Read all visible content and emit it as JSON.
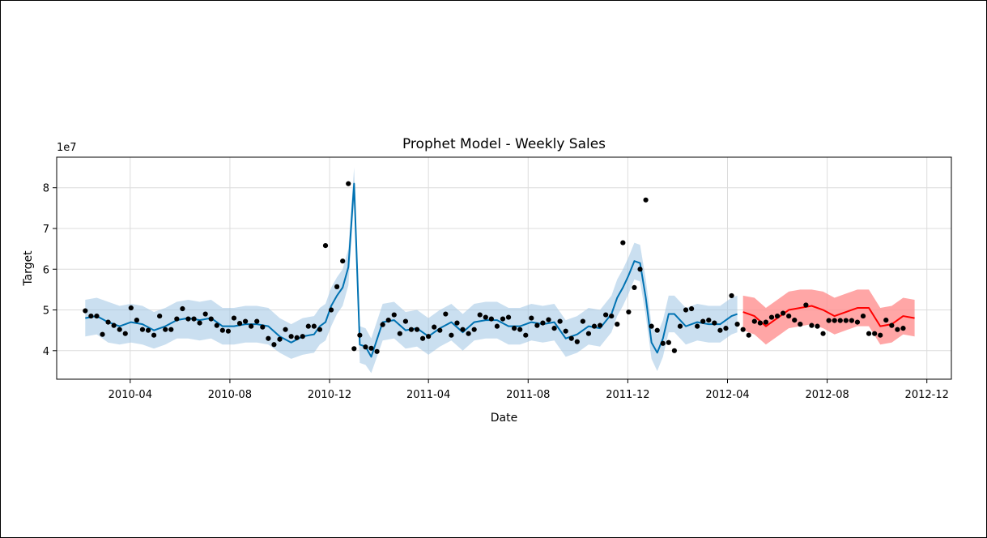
{
  "chart_data": {
    "type": "line",
    "title": "Prophet Model - Weekly Sales",
    "xlabel": "Date",
    "ylabel": "Target",
    "y_offset_label": "1e7",
    "y_scale": 10000000,
    "grid": true,
    "x_range": [
      "2010-01-01",
      "2012-12-31"
    ],
    "ylim": [
      3.3,
      8.75
    ],
    "x_ticks": [
      "2010-04",
      "2010-08",
      "2010-12",
      "2011-04",
      "2011-08",
      "2011-12",
      "2012-04",
      "2012-08",
      "2012-12"
    ],
    "y_ticks": [
      "4",
      "5",
      "6",
      "7",
      "8"
    ],
    "colors": {
      "fit_line": "#0072b2",
      "fit_band": "#9ec5e3",
      "forecast_line": "#ff0000",
      "forecast_band": "#ff9090",
      "points": "#000000"
    },
    "series": [
      {
        "role": "fitted_trend",
        "x": [
          "2010-02-05",
          "2010-02-19",
          "2010-03-05",
          "2010-03-19",
          "2010-04-02",
          "2010-04-16",
          "2010-04-30",
          "2010-05-14",
          "2010-05-28",
          "2010-06-11",
          "2010-06-25",
          "2010-07-09",
          "2010-07-23",
          "2010-08-06",
          "2010-08-20",
          "2010-09-03",
          "2010-09-17",
          "2010-10-01",
          "2010-10-15",
          "2010-10-29",
          "2010-11-12",
          "2010-11-19",
          "2010-11-26",
          "2010-12-03",
          "2010-12-10",
          "2010-12-17",
          "2010-12-24",
          "2010-12-31",
          "2011-01-07",
          "2011-01-14",
          "2011-01-21",
          "2011-02-04",
          "2011-02-18",
          "2011-03-04",
          "2011-03-18",
          "2011-04-01",
          "2011-04-15",
          "2011-04-29",
          "2011-05-13",
          "2011-05-27",
          "2011-06-10",
          "2011-06-24",
          "2011-07-08",
          "2011-07-22",
          "2011-08-05",
          "2011-08-19",
          "2011-09-02",
          "2011-09-16",
          "2011-09-30",
          "2011-10-14",
          "2011-10-28",
          "2011-11-11",
          "2011-11-18",
          "2011-11-25",
          "2011-12-02",
          "2011-12-09",
          "2011-12-16",
          "2011-12-23",
          "2011-12-30",
          "2012-01-06",
          "2012-01-13",
          "2012-01-20",
          "2012-01-27",
          "2012-02-10",
          "2012-02-24",
          "2012-03-09",
          "2012-03-23",
          "2012-04-06",
          "2012-04-13"
        ],
        "y": [
          4.8,
          4.85,
          4.7,
          4.6,
          4.7,
          4.65,
          4.5,
          4.6,
          4.75,
          4.8,
          4.75,
          4.8,
          4.6,
          4.6,
          4.65,
          4.65,
          4.6,
          4.35,
          4.2,
          4.35,
          4.4,
          4.6,
          4.7,
          5.1,
          5.35,
          5.55,
          6.05,
          8.1,
          4.15,
          4.1,
          3.85,
          4.7,
          4.75,
          4.5,
          4.55,
          4.35,
          4.55,
          4.7,
          4.45,
          4.7,
          4.75,
          4.75,
          4.6,
          4.6,
          4.7,
          4.65,
          4.7,
          4.3,
          4.4,
          4.6,
          4.55,
          4.9,
          5.3,
          5.55,
          5.85,
          6.2,
          6.15,
          5.3,
          4.2,
          3.95,
          4.3,
          4.9,
          4.9,
          4.6,
          4.7,
          4.65,
          4.65,
          4.85,
          4.9
        ],
        "lower": [
          4.35,
          4.4,
          4.2,
          4.15,
          4.2,
          4.15,
          4.05,
          4.15,
          4.3,
          4.3,
          4.25,
          4.3,
          4.15,
          4.15,
          4.2,
          4.2,
          4.15,
          3.95,
          3.8,
          3.9,
          3.95,
          4.15,
          4.25,
          4.6,
          4.9,
          5.1,
          5.6,
          7.7,
          3.7,
          3.65,
          3.45,
          4.25,
          4.3,
          4.05,
          4.1,
          3.9,
          4.1,
          4.25,
          4.0,
          4.25,
          4.3,
          4.3,
          4.15,
          4.15,
          4.25,
          4.2,
          4.25,
          3.85,
          3.95,
          4.15,
          4.1,
          4.45,
          4.85,
          5.1,
          5.4,
          5.75,
          5.7,
          4.85,
          3.8,
          3.5,
          3.85,
          4.45,
          4.45,
          4.15,
          4.25,
          4.2,
          4.2,
          4.4,
          4.45
        ],
        "upper": [
          5.25,
          5.3,
          5.2,
          5.1,
          5.15,
          5.1,
          4.95,
          5.05,
          5.2,
          5.25,
          5.2,
          5.25,
          5.05,
          5.05,
          5.1,
          5.1,
          5.05,
          4.8,
          4.65,
          4.8,
          4.85,
          5.05,
          5.15,
          5.55,
          5.8,
          6.0,
          6.5,
          8.5,
          4.6,
          4.55,
          4.3,
          5.15,
          5.2,
          4.95,
          5.0,
          4.8,
          5.0,
          5.15,
          4.9,
          5.15,
          5.2,
          5.2,
          5.05,
          5.05,
          5.15,
          5.1,
          5.15,
          4.75,
          4.85,
          5.05,
          5.0,
          5.35,
          5.75,
          6.0,
          6.3,
          6.65,
          6.6,
          5.75,
          4.65,
          4.4,
          4.75,
          5.35,
          5.35,
          5.05,
          5.15,
          5.1,
          5.1,
          5.3,
          5.35
        ]
      },
      {
        "role": "forecast",
        "x": [
          "2012-04-20",
          "2012-05-04",
          "2012-05-18",
          "2012-06-01",
          "2012-06-15",
          "2012-06-29",
          "2012-07-13",
          "2012-07-27",
          "2012-08-10",
          "2012-08-24",
          "2012-09-07",
          "2012-09-21",
          "2012-10-05",
          "2012-10-19",
          "2012-11-02",
          "2012-11-16"
        ],
        "y": [
          4.95,
          4.85,
          4.6,
          4.8,
          5.0,
          5.05,
          5.1,
          5.0,
          4.85,
          4.95,
          5.05,
          5.05,
          4.6,
          4.65,
          4.85,
          4.8
        ],
        "lower": [
          4.5,
          4.4,
          4.15,
          4.35,
          4.55,
          4.6,
          4.65,
          4.55,
          4.4,
          4.5,
          4.6,
          4.6,
          4.15,
          4.2,
          4.4,
          4.35
        ],
        "upper": [
          5.35,
          5.3,
          5.05,
          5.25,
          5.45,
          5.5,
          5.5,
          5.45,
          5.3,
          5.4,
          5.5,
          5.5,
          5.05,
          5.1,
          5.3,
          5.25
        ]
      },
      {
        "role": "observed",
        "x": [
          "2010-02-05",
          "2010-02-12",
          "2010-02-19",
          "2010-02-26",
          "2010-03-05",
          "2010-03-12",
          "2010-03-19",
          "2010-03-26",
          "2010-04-02",
          "2010-04-09",
          "2010-04-16",
          "2010-04-23",
          "2010-04-30",
          "2010-05-07",
          "2010-05-14",
          "2010-05-21",
          "2010-05-28",
          "2010-06-04",
          "2010-06-11",
          "2010-06-18",
          "2010-06-25",
          "2010-07-02",
          "2010-07-09",
          "2010-07-16",
          "2010-07-23",
          "2010-07-30",
          "2010-08-06",
          "2010-08-13",
          "2010-08-20",
          "2010-08-27",
          "2010-09-03",
          "2010-09-10",
          "2010-09-17",
          "2010-09-24",
          "2010-10-01",
          "2010-10-08",
          "2010-10-15",
          "2010-10-22",
          "2010-10-29",
          "2010-11-05",
          "2010-11-12",
          "2010-11-19",
          "2010-11-26",
          "2010-12-03",
          "2010-12-10",
          "2010-12-17",
          "2010-12-24",
          "2010-12-31",
          "2011-01-07",
          "2011-01-14",
          "2011-01-21",
          "2011-01-28",
          "2011-02-04",
          "2011-02-11",
          "2011-02-18",
          "2011-02-25",
          "2011-03-04",
          "2011-03-11",
          "2011-03-18",
          "2011-03-25",
          "2011-04-01",
          "2011-04-08",
          "2011-04-15",
          "2011-04-22",
          "2011-04-29",
          "2011-05-06",
          "2011-05-13",
          "2011-05-20",
          "2011-05-27",
          "2011-06-03",
          "2011-06-10",
          "2011-06-17",
          "2011-06-24",
          "2011-07-01",
          "2011-07-08",
          "2011-07-15",
          "2011-07-22",
          "2011-07-29",
          "2011-08-05",
          "2011-08-12",
          "2011-08-19",
          "2011-08-26",
          "2011-09-02",
          "2011-09-09",
          "2011-09-16",
          "2011-09-23",
          "2011-09-30",
          "2011-10-07",
          "2011-10-14",
          "2011-10-21",
          "2011-10-28",
          "2011-11-04",
          "2011-11-11",
          "2011-11-18",
          "2011-11-25",
          "2011-12-02",
          "2011-12-09",
          "2011-12-16",
          "2011-12-23",
          "2011-12-30",
          "2012-01-06",
          "2012-01-13",
          "2012-01-20",
          "2012-01-27",
          "2012-02-03",
          "2012-02-10",
          "2012-02-17",
          "2012-02-24",
          "2012-03-02",
          "2012-03-09",
          "2012-03-16",
          "2012-03-23",
          "2012-03-30",
          "2012-04-06",
          "2012-04-13",
          "2012-04-20",
          "2012-04-27",
          "2012-05-04",
          "2012-05-11",
          "2012-05-18",
          "2012-05-25",
          "2012-06-01",
          "2012-06-08",
          "2012-06-15",
          "2012-06-22",
          "2012-06-29",
          "2012-07-06",
          "2012-07-13",
          "2012-07-20",
          "2012-07-27",
          "2012-08-03",
          "2012-08-10",
          "2012-08-17",
          "2012-08-24",
          "2012-08-31",
          "2012-09-07",
          "2012-09-14",
          "2012-09-21",
          "2012-09-28",
          "2012-10-05",
          "2012-10-12",
          "2012-10-19",
          "2012-10-26",
          "2012-11-02"
        ],
        "y": [
          4.98,
          4.85,
          4.85,
          4.4,
          4.7,
          4.62,
          4.52,
          4.42,
          5.05,
          4.75,
          4.52,
          4.5,
          4.38,
          4.85,
          4.52,
          4.52,
          4.78,
          5.03,
          4.78,
          4.78,
          4.68,
          4.9,
          4.78,
          4.62,
          4.5,
          4.48,
          4.8,
          4.67,
          4.72,
          4.6,
          4.72,
          4.58,
          4.3,
          4.15,
          4.28,
          4.52,
          4.35,
          4.32,
          4.35,
          4.6,
          4.6,
          4.52,
          6.58,
          5.0,
          5.57,
          6.2,
          8.1,
          4.05,
          4.38,
          4.09,
          4.06,
          3.98,
          4.64,
          4.75,
          4.88,
          4.42,
          4.72,
          4.52,
          4.52,
          4.3,
          4.35,
          4.58,
          4.5,
          4.9,
          4.38,
          4.68,
          4.52,
          4.42,
          4.52,
          4.88,
          4.82,
          4.78,
          4.6,
          4.78,
          4.82,
          4.55,
          4.52,
          4.38,
          4.8,
          4.62,
          4.68,
          4.76,
          4.55,
          4.72,
          4.48,
          4.3,
          4.22,
          4.72,
          4.42,
          4.6,
          4.62,
          4.88,
          4.85,
          4.65,
          6.65,
          4.95,
          5.55,
          6.0,
          7.7,
          4.6,
          4.5,
          4.18,
          4.2,
          4.0,
          4.6,
          5.0,
          5.03,
          4.6,
          4.72,
          4.75,
          4.68,
          4.5,
          4.55,
          5.35,
          4.65,
          4.52,
          4.38,
          4.72,
          4.68,
          4.7,
          4.82,
          4.85,
          4.92,
          4.85,
          4.75,
          4.65,
          5.12,
          4.62,
          4.6,
          4.42,
          4.74,
          4.74,
          4.74,
          4.74,
          4.74,
          4.7,
          4.85,
          4.42,
          4.42,
          4.38,
          4.75,
          4.62,
          4.52,
          4.55
        ]
      }
    ]
  }
}
